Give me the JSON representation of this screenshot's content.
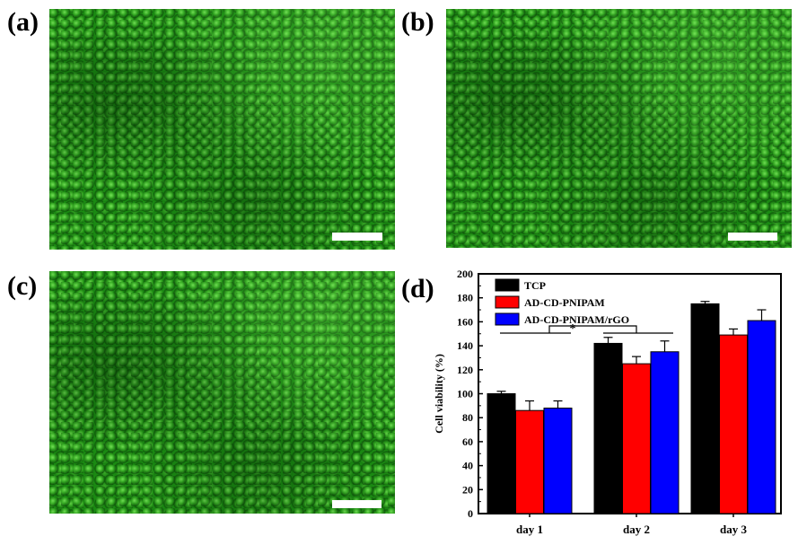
{
  "panels": {
    "a": {
      "label": "(a)"
    },
    "b": {
      "label": "(b)"
    },
    "c": {
      "label": "(c)"
    },
    "d": {
      "label": "(d)"
    }
  },
  "chart_data": {
    "type": "bar",
    "title": "",
    "xlabel": "",
    "ylabel": "Cell viability (%)",
    "ylim": [
      0,
      200
    ],
    "yticks": [
      0,
      20,
      40,
      60,
      80,
      100,
      120,
      140,
      160,
      180,
      200
    ],
    "categories": [
      "day 1",
      "day 2",
      "day 3"
    ],
    "series": [
      {
        "name": "TCP",
        "color": "#000000",
        "values": [
          100,
          142,
          175
        ],
        "errors": [
          2,
          5,
          2
        ]
      },
      {
        "name": "AD-CD-PNIPAM",
        "color": "#ff0000",
        "values": [
          86,
          125,
          149
        ],
        "errors": [
          8,
          6,
          5
        ]
      },
      {
        "name": "AD-CD-PNIPAM/rGO",
        "color": "#0000ff",
        "values": [
          88,
          135,
          161
        ],
        "errors": [
          6,
          9,
          9
        ]
      }
    ],
    "legend_position": "top-left",
    "annotation": "*"
  }
}
